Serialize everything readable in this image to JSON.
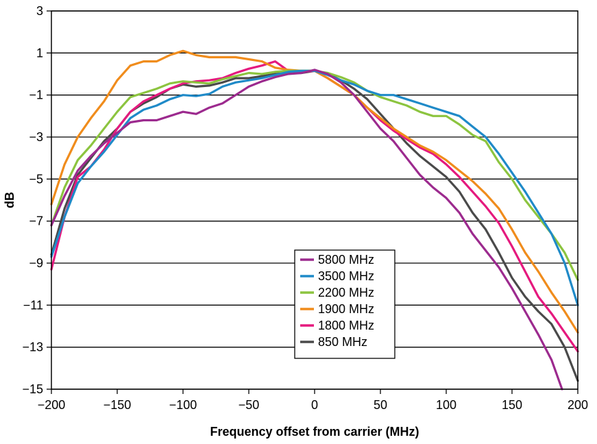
{
  "chart_data": {
    "type": "line",
    "xlabel": "Frequency offset from carrier (MHz)",
    "ylabel": "dB",
    "xlim": [
      -200,
      200
    ],
    "ylim": [
      -15,
      3
    ],
    "xticks": [
      "−200",
      "−150",
      "−100",
      "−50",
      "0",
      "50",
      "100",
      "150",
      "200"
    ],
    "xtick_values": [
      -200,
      -150,
      -100,
      -50,
      0,
      50,
      100,
      150,
      200
    ],
    "yticks": [
      "3",
      "1",
      "−1",
      "−3",
      "−5",
      "−7",
      "−9",
      "−11",
      "−13",
      "−15"
    ],
    "ytick_values": [
      3,
      1,
      -1,
      -3,
      -5,
      -7,
      -9,
      -11,
      -13,
      -15
    ],
    "grid": "horizontal",
    "legend_position": "center-bottom",
    "series": [
      {
        "name": "5800 MHz",
        "color": "#9c2a8e",
        "x": [
          -200,
          -190,
          -180,
          -170,
          -160,
          -150,
          -140,
          -130,
          -120,
          -110,
          -100,
          -90,
          -80,
          -70,
          -60,
          -50,
          -40,
          -30,
          -20,
          -10,
          0,
          10,
          20,
          30,
          40,
          50,
          60,
          70,
          80,
          90,
          100,
          110,
          120,
          130,
          140,
          150,
          160,
          170,
          180,
          188
        ],
        "y": [
          -7.2,
          -5.8,
          -4.6,
          -3.9,
          -3.3,
          -2.8,
          -2.3,
          -2.2,
          -2.2,
          -2.0,
          -1.8,
          -1.9,
          -1.6,
          -1.4,
          -1.0,
          -0.6,
          -0.35,
          -0.15,
          0.0,
          0.05,
          0.2,
          0.0,
          -0.4,
          -1.0,
          -1.8,
          -2.6,
          -3.2,
          -4.0,
          -4.8,
          -5.4,
          -5.9,
          -6.6,
          -7.6,
          -8.4,
          -9.2,
          -10.2,
          -11.3,
          -12.4,
          -13.6,
          -15.0
        ]
      },
      {
        "name": "3500 MHz",
        "color": "#1f8ac8",
        "x": [
          -200,
          -190,
          -180,
          -170,
          -160,
          -150,
          -140,
          -130,
          -120,
          -110,
          -100,
          -90,
          -80,
          -70,
          -60,
          -50,
          -40,
          -30,
          -20,
          -10,
          0,
          10,
          20,
          30,
          40,
          50,
          60,
          70,
          80,
          90,
          100,
          110,
          120,
          130,
          140,
          150,
          160,
          170,
          180,
          190,
          200
        ],
        "y": [
          -8.7,
          -6.8,
          -5.2,
          -4.4,
          -3.7,
          -2.9,
          -2.1,
          -1.7,
          -1.5,
          -1.2,
          -1.0,
          -1.05,
          -0.95,
          -0.6,
          -0.4,
          -0.3,
          -0.2,
          -0.05,
          0.1,
          0.15,
          0.15,
          -0.05,
          -0.3,
          -0.5,
          -0.8,
          -1.0,
          -1.0,
          -1.2,
          -1.4,
          -1.6,
          -1.8,
          -2.0,
          -2.5,
          -3.0,
          -3.8,
          -4.7,
          -5.6,
          -6.6,
          -7.6,
          -9.0,
          -11.0
        ]
      },
      {
        "name": "2200 MHz",
        "color": "#8cc43f",
        "x": [
          -200,
          -190,
          -180,
          -170,
          -160,
          -150,
          -140,
          -130,
          -120,
          -110,
          -100,
          -90,
          -80,
          -70,
          -60,
          -50,
          -40,
          -30,
          -20,
          -10,
          0,
          10,
          20,
          30,
          40,
          50,
          60,
          70,
          80,
          90,
          100,
          110,
          120,
          130,
          140,
          150,
          160,
          170,
          180,
          190,
          200
        ],
        "y": [
          -7.2,
          -5.4,
          -4.1,
          -3.4,
          -2.6,
          -1.8,
          -1.1,
          -0.9,
          -0.7,
          -0.45,
          -0.35,
          -0.4,
          -0.45,
          -0.25,
          -0.1,
          0.05,
          0.0,
          0.1,
          0.15,
          0.15,
          0.15,
          0.05,
          -0.15,
          -0.4,
          -0.8,
          -1.1,
          -1.3,
          -1.5,
          -1.8,
          -2.0,
          -2.0,
          -2.4,
          -2.9,
          -3.2,
          -4.2,
          -5.0,
          -6.0,
          -6.8,
          -7.6,
          -8.5,
          -9.8
        ]
      },
      {
        "name": "1900 MHz",
        "color": "#f08c1c",
        "x": [
          -200,
          -190,
          -180,
          -170,
          -160,
          -150,
          -140,
          -130,
          -120,
          -110,
          -100,
          -90,
          -80,
          -70,
          -60,
          -50,
          -40,
          -30,
          -20,
          -10,
          0,
          10,
          20,
          30,
          40,
          50,
          60,
          70,
          80,
          90,
          100,
          110,
          120,
          130,
          140,
          150,
          160,
          170,
          180,
          190,
          200
        ],
        "y": [
          -6.2,
          -4.3,
          -3.0,
          -2.1,
          -1.3,
          -0.3,
          0.4,
          0.6,
          0.6,
          0.9,
          1.1,
          0.9,
          0.8,
          0.8,
          0.8,
          0.7,
          0.6,
          0.3,
          0.2,
          0.15,
          0.15,
          -0.2,
          -0.6,
          -1.0,
          -1.6,
          -2.1,
          -2.6,
          -3.0,
          -3.4,
          -3.7,
          -4.1,
          -4.6,
          -5.1,
          -5.7,
          -6.4,
          -7.4,
          -8.5,
          -9.4,
          -10.4,
          -11.3,
          -12.3
        ]
      },
      {
        "name": "1800 MHz",
        "color": "#e5197e",
        "x": [
          -200,
          -190,
          -180,
          -170,
          -160,
          -150,
          -140,
          -130,
          -120,
          -110,
          -100,
          -90,
          -80,
          -70,
          -60,
          -50,
          -40,
          -30,
          -20,
          -10,
          0,
          10,
          20,
          30,
          40,
          50,
          60,
          70,
          80,
          90,
          100,
          110,
          120,
          130,
          140,
          150,
          160,
          170,
          180,
          190,
          200
        ],
        "y": [
          -9.3,
          -6.8,
          -4.9,
          -4.4,
          -3.6,
          -2.6,
          -1.8,
          -1.3,
          -1.0,
          -0.7,
          -0.45,
          -0.35,
          -0.3,
          -0.2,
          0.05,
          0.25,
          0.4,
          0.6,
          0.15,
          0.1,
          0.15,
          -0.2,
          -0.6,
          -1.0,
          -1.6,
          -2.2,
          -2.7,
          -3.1,
          -3.5,
          -3.8,
          -4.3,
          -4.9,
          -5.6,
          -6.3,
          -7.1,
          -8.2,
          -9.4,
          -10.6,
          -11.4,
          -12.3,
          -13.2
        ]
      },
      {
        "name": "850 MHz",
        "color": "#4a4a4a",
        "x": [
          -200,
          -190,
          -180,
          -170,
          -160,
          -150,
          -140,
          -130,
          -120,
          -110,
          -100,
          -90,
          -80,
          -70,
          -60,
          -50,
          -40,
          -30,
          -20,
          -10,
          0,
          10,
          20,
          30,
          40,
          50,
          60,
          70,
          80,
          90,
          100,
          110,
          120,
          130,
          140,
          150,
          160,
          170,
          180,
          190,
          200
        ],
        "y": [
          -8.6,
          -6.4,
          -4.8,
          -4.0,
          -3.2,
          -2.6,
          -1.8,
          -1.4,
          -1.1,
          -0.7,
          -0.5,
          -0.6,
          -0.55,
          -0.4,
          -0.2,
          -0.2,
          -0.1,
          0.0,
          0.05,
          0.05,
          0.15,
          0.0,
          -0.3,
          -0.7,
          -1.2,
          -1.9,
          -2.6,
          -3.3,
          -3.9,
          -4.4,
          -4.9,
          -5.6,
          -6.6,
          -7.4,
          -8.5,
          -9.7,
          -10.6,
          -11.3,
          -11.9,
          -13.0,
          -14.6
        ]
      }
    ]
  }
}
